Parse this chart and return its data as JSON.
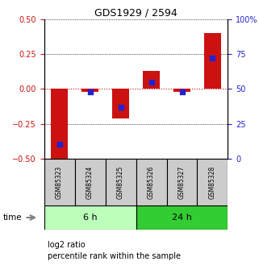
{
  "title": "GDS1929 / 2594",
  "samples": [
    "GSM85323",
    "GSM85324",
    "GSM85325",
    "GSM85326",
    "GSM85327",
    "GSM85328"
  ],
  "log2_ratio": [
    -0.52,
    -0.02,
    -0.21,
    0.13,
    -0.02,
    0.4
  ],
  "percentile_rank": [
    10,
    48,
    37,
    55,
    48,
    72
  ],
  "groups": [
    {
      "label": "6 h",
      "indices": [
        0,
        1,
        2
      ],
      "color": "#bbffbb"
    },
    {
      "label": "24 h",
      "indices": [
        3,
        4,
        5
      ],
      "color": "#33cc33"
    }
  ],
  "ylim_left": [
    -0.5,
    0.5
  ],
  "ylim_right": [
    0,
    100
  ],
  "yticks_left": [
    -0.5,
    -0.25,
    0,
    0.25,
    0.5
  ],
  "yticks_right": [
    0,
    25,
    50,
    75,
    100
  ],
  "bar_color": "#cc1111",
  "dot_color": "#2222cc",
  "bar_width": 0.55,
  "dot_size": 25,
  "left_tick_color": "#cc1111",
  "right_tick_color": "#2222cc",
  "zero_line_color": "#cc1111",
  "bg_color": "#ffffff",
  "sample_box_color": "#cccccc",
  "time_label": "time",
  "legend_bar_label": "log2 ratio",
  "legend_dot_label": "percentile rank within the sample",
  "figsize": [
    3.21,
    3.45
  ],
  "dpi": 100
}
